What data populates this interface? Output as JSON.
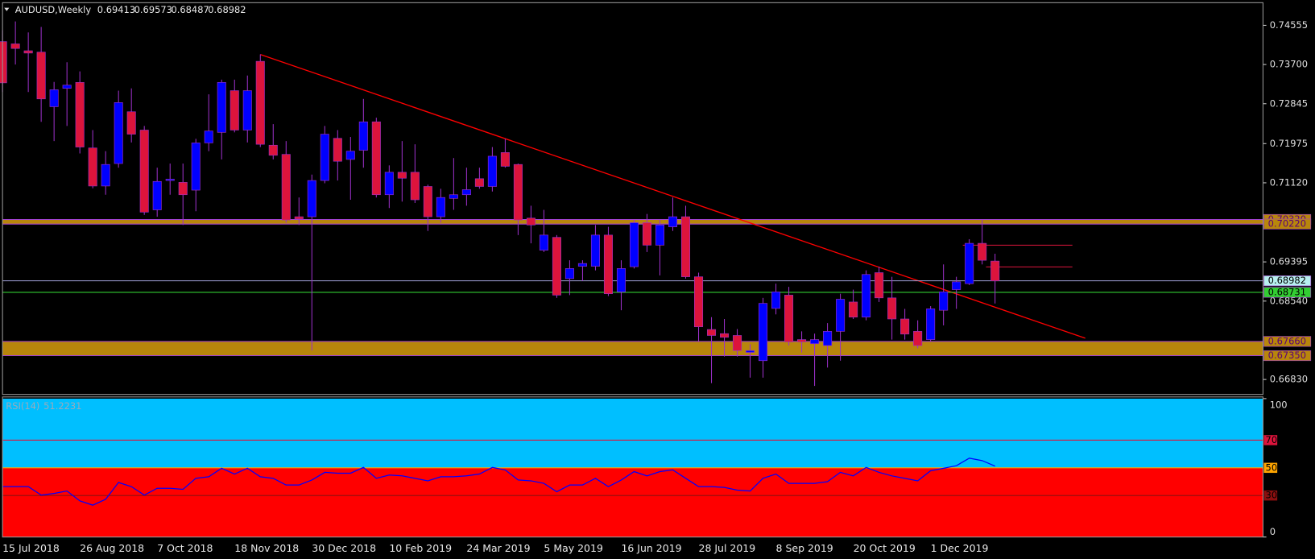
{
  "chart_data": [
    {
      "type": "candlestick",
      "series": [
        {
          "name": "AUDUSD,Weekly",
          "open": [
            0.742,
            0.7415,
            0.74,
            0.7397,
            0.7278,
            0.7318,
            0.7331,
            0.7188,
            0.7105,
            0.7154,
            0.7267,
            0.7227,
            0.7053,
            0.7117,
            0.7113,
            0.7096,
            0.7199,
            0.7222,
            0.7313,
            0.7227,
            0.7377,
            0.7194,
            0.7174,
            0.7038,
            0.7038,
            0.7117,
            0.7209,
            0.7163,
            0.7183,
            0.7245,
            0.7086,
            0.7135,
            0.7135,
            0.7104,
            0.7038,
            0.7078,
            0.7086,
            0.7121,
            0.7104,
            0.7178,
            0.7152,
            0.7035,
            0.6965,
            0.6993,
            0.6903,
            0.693,
            0.693,
            0.6998,
            0.6874,
            0.6929,
            0.7025,
            0.6976,
            0.7016,
            0.7038,
            0.6907,
            0.6792,
            0.6783,
            0.6779,
            0.6742,
            0.6724,
            0.6838,
            0.6867,
            0.677,
            0.6761,
            0.6757,
            0.6788,
            0.6852,
            0.6819,
            0.6916,
            0.6861,
            0.6815,
            0.6788,
            0.677,
            0.6834,
            0.6879,
            0.6892,
            0.698,
            0.69413
          ],
          "high": [
            0.7445,
            0.7464,
            0.744,
            0.7452,
            0.7332,
            0.7375,
            0.7355,
            0.7227,
            0.7181,
            0.7313,
            0.7318,
            0.7236,
            0.7145,
            0.7154,
            0.7154,
            0.7208,
            0.7305,
            0.7337,
            0.7337,
            0.7346,
            0.7392,
            0.724,
            0.7203,
            0.708,
            0.713,
            0.7236,
            0.7227,
            0.7212,
            0.7295,
            0.7254,
            0.715,
            0.7203,
            0.7196,
            0.7108,
            0.7099,
            0.7166,
            0.7145,
            0.7145,
            0.719,
            0.7208,
            0.7154,
            0.7062,
            0.7053,
            0.6998,
            0.6943,
            0.6943,
            0.702,
            0.7016,
            0.6943,
            0.7031,
            0.7044,
            0.7031,
            0.708,
            0.7062,
            0.6916,
            0.6819,
            0.6815,
            0.6793,
            0.676,
            0.6861,
            0.6892,
            0.6885,
            0.6788,
            0.6783,
            0.6806,
            0.687,
            0.6879,
            0.6921,
            0.6929,
            0.6907,
            0.6837,
            0.6812,
            0.6843,
            0.6934,
            0.6907,
            0.6989,
            0.7031,
            0.69573
          ],
          "low": [
            0.731,
            0.737,
            0.731,
            0.7245,
            0.7203,
            0.7236,
            0.7176,
            0.71,
            0.7086,
            0.7145,
            0.72,
            0.7042,
            0.7038,
            0.7086,
            0.702,
            0.705,
            0.7181,
            0.7163,
            0.7222,
            0.72,
            0.719,
            0.7163,
            0.7025,
            0.702,
            0.6746,
            0.7111,
            0.7117,
            0.7075,
            0.7145,
            0.708,
            0.7057,
            0.7071,
            0.7068,
            0.7007,
            0.7025,
            0.7053,
            0.7062,
            0.7099,
            0.7093,
            0.7145,
            0.6998,
            0.698,
            0.6961,
            0.6861,
            0.6867,
            0.6898,
            0.6921,
            0.6865,
            0.6834,
            0.6925,
            0.6961,
            0.691,
            0.7007,
            0.6903,
            0.6765,
            0.6675,
            0.6733,
            0.6733,
            0.6687,
            0.6687,
            0.6825,
            0.6757,
            0.6742,
            0.6669,
            0.6709,
            0.6724,
            0.6815,
            0.6812,
            0.6852,
            0.677,
            0.677,
            0.6751,
            0.6765,
            0.6801,
            0.6837,
            0.6889,
            0.6934,
            0.68487
          ],
          "close": [
            0.733,
            0.7405,
            0.7395,
            0.7295,
            0.7315,
            0.7325,
            0.719,
            0.7105,
            0.7152,
            0.7287,
            0.7218,
            0.7048,
            0.7115,
            0.712,
            0.7086,
            0.7199,
            0.7225,
            0.7331,
            0.7227,
            0.7313,
            0.7196,
            0.7172,
            0.7031,
            0.7033,
            0.7117,
            0.7218,
            0.7159,
            0.7181,
            0.7245,
            0.7086,
            0.7135,
            0.7122,
            0.7075,
            0.7038,
            0.708,
            0.7086,
            0.7097,
            0.7104,
            0.717,
            0.7148,
            0.7031,
            0.702,
            0.6998,
            0.6867,
            0.6925,
            0.6936,
            0.6998,
            0.687,
            0.6925,
            0.7025,
            0.6976,
            0.702,
            0.7038,
            0.6907,
            0.6798,
            0.6779,
            0.6775,
            0.6746,
            0.6746,
            0.6849,
            0.6874,
            0.6765,
            0.6765,
            0.677,
            0.6788,
            0.6858,
            0.6819,
            0.6912,
            0.6861,
            0.6815,
            0.6782,
            0.6757,
            0.6837,
            0.6874,
            0.6896,
            0.698,
            0.6943,
            0.68982
          ]
        }
      ],
      "categories": [
        "15 Jul 2018",
        null,
        null,
        null,
        null,
        null,
        "26 Aug 2018",
        null,
        null,
        null,
        null,
        null,
        "7 Oct 2018",
        null,
        null,
        null,
        null,
        null,
        "18 Nov 2018",
        null,
        null,
        null,
        null,
        null,
        "30 Dec 2018",
        null,
        null,
        null,
        null,
        null,
        "10 Feb 2019",
        null,
        null,
        null,
        null,
        null,
        "24 Mar 2019",
        null,
        null,
        null,
        null,
        null,
        "5 May 2019",
        null,
        null,
        null,
        null,
        null,
        "16 Jun 2019",
        null,
        null,
        null,
        null,
        null,
        "28 Jul 2019",
        null,
        null,
        null,
        null,
        null,
        "8 Sep 2019",
        null,
        null,
        null,
        null,
        null,
        "20 Oct 2019",
        null,
        null,
        null,
        null,
        null,
        "1 Dec 2019",
        null,
        null,
        null,
        null,
        null
      ],
      "up_color": "#0000ff",
      "down_color": "#dc143c",
      "wick_color": "#9b30c8",
      "ylim": [
        0.66504,
        0.75049
      ],
      "yticks": [
        0.74555,
        {
          "value": 0.737,
          "label": "0.73700"
        },
        0.72845,
        0.71975,
        {
          "value": 0.7112,
          "label": "0.71120"
        },
        0.69395,
        {
          "value": 0.6854,
          "label": "0.68540"
        },
        {
          "value": 0.6683,
          "label": "0.66830"
        }
      ],
      "zones": [
        {
          "top": {
            "value": 0.7032,
            "label": "0.70320"
          },
          "bottom": {
            "value": 0.7022,
            "label": "0.70220"
          },
          "color": "#b8860b"
        },
        {
          "top": {
            "value": 0.6766,
            "label": "0.67660"
          },
          "bottom": {
            "value": 0.6735,
            "label": "0.67350"
          },
          "color": "#b8860b"
        }
      ],
      "lines": [
        {
          "value": 0.68982,
          "color": "#a0a0d8",
          "label_color": "#b8f0f0"
        },
        {
          "value": 0.68731,
          "color": "#32cd32",
          "label_color": "#32cd32"
        }
      ],
      "trendline": {
        "values": [
          0.7392,
          0.6773
        ],
        "color": "#ff0000"
      },
      "short_levels": [
        0.6976,
        0.69285
      ]
    },
    {
      "type": "line",
      "series": [
        {
          "name": "RSI(14)",
          "color": "#0000ff",
          "values": [
            36.4,
            36.4,
            36.4,
            30.3,
            31.5,
            33.3,
            26.1,
            23.0,
            27.3,
            39.4,
            36.4,
            30.3,
            35.2,
            35.2,
            34.5,
            42.4,
            43.6,
            49.7,
            45.5,
            49.7,
            43.6,
            42.4,
            37.6,
            37.6,
            41.2,
            46.7,
            46.1,
            46.1,
            50.3,
            42.4,
            44.8,
            44.2,
            42.4,
            40.6,
            43.6,
            43.6,
            44.2,
            45.5,
            50.3,
            48.5,
            41.2,
            40.6,
            38.8,
            32.7,
            37.6,
            37.6,
            42.4,
            36.4,
            41.2,
            47.3,
            44.2,
            47.3,
            48.5,
            42.4,
            36.4,
            36.4,
            35.8,
            33.9,
            33.3,
            42.4,
            45.5,
            38.8,
            38.8,
            38.8,
            40.0,
            46.7,
            44.2,
            50.3,
            46.7,
            44.2,
            42.4,
            40.6,
            47.9,
            49.7,
            51.5,
            57.0,
            55.2,
            51.2231
          ]
        }
      ],
      "ylim": [
        0,
        100
      ],
      "yticks": [
        0,
        100
      ],
      "levels": [
        {
          "value": 70,
          "color": "#dc143c"
        },
        {
          "value": 50,
          "color": "#ffa500"
        },
        {
          "value": 30,
          "color": "#8b1010"
        }
      ],
      "fills": [
        {
          "from": 50,
          "to": 100,
          "color": "#00bfff"
        },
        {
          "from": 0,
          "to": 50,
          "color": "#ff0000"
        }
      ]
    }
  ]
}
